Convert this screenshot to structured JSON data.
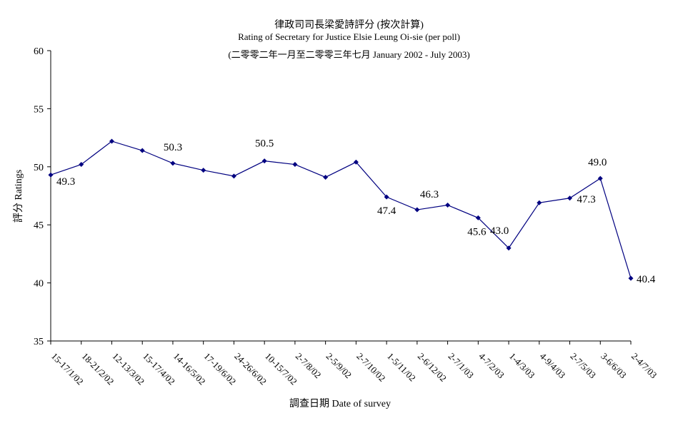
{
  "chart_data": {
    "type": "line",
    "title": "律政司司長梁愛詩評分 (按次計算)",
    "subtitle": "Rating of Secretary for Justice Elsie Leung Oi-sie  (per poll)",
    "subtitle2": "(二零零二年一月至二零零三年七月 January 2002 - July 2003)",
    "xlabel": "調查日期 Date of survey",
    "ylabel": "評分 Ratings",
    "ylim": [
      35,
      60
    ],
    "yticks": [
      "35",
      "40",
      "45",
      "50",
      "55",
      "60"
    ],
    "grid": false,
    "categories": [
      "15-17/1/02",
      "18-21/2/02",
      "12-13/3/02",
      "15-17/4/02",
      "14-16/5/02",
      "17-19/6/02",
      "24-26/6/02",
      "10-15/7/02",
      "2-7/8/02",
      "2-5/9/02",
      "2-7/10/02",
      "1-5/11/02",
      "2-6/12/02",
      "2-7/1/03",
      "4-7/2/03",
      "1-4/3/03",
      "4-9/4/03",
      "2-7/5/03",
      "3-6/6/03",
      "2-4/7/03"
    ],
    "series": [
      {
        "values": [
          49.3,
          50.2,
          52.2,
          51.4,
          50.3,
          49.7,
          49.2,
          50.5,
          50.2,
          49.1,
          50.4,
          47.4,
          46.3,
          46.7,
          45.6,
          43.0,
          46.9,
          47.3,
          49.0,
          40.4
        ],
        "color": "#000080"
      }
    ],
    "data_labels": [
      {
        "index": 0,
        "text": "49.3"
      },
      {
        "index": 4,
        "text": "50.3"
      },
      {
        "index": 7,
        "text": "50.5"
      },
      {
        "index": 11,
        "text": "47.4"
      },
      {
        "index": 12,
        "text": "46.3"
      },
      {
        "index": 14,
        "text": "45.6"
      },
      {
        "index": 15,
        "text": "43.0"
      },
      {
        "index": 17,
        "text": "47.3"
      },
      {
        "index": 18,
        "text": "49.0"
      },
      {
        "index": 19,
        "text": "40.4"
      }
    ]
  }
}
